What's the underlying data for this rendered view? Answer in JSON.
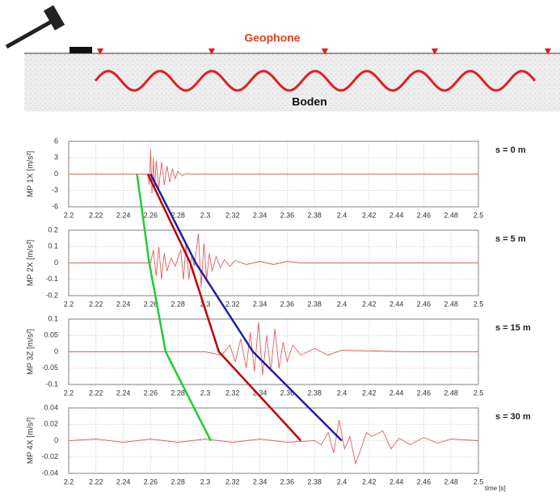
{
  "diagram": {
    "geophone_label": "Geophone",
    "ground_label": "Boden"
  },
  "chart_data": [
    {
      "type": "line",
      "title": "s = 0 m",
      "y_label": "MP 1X [m/s²]",
      "color": "#e06060",
      "xlim": [
        2.2,
        2.5
      ],
      "xticks": [
        2.2,
        2.22,
        2.24,
        2.26,
        2.28,
        2.3,
        2.32,
        2.34,
        2.36,
        2.38,
        2.4,
        2.42,
        2.44,
        2.46,
        2.48,
        2.5
      ],
      "ylim": [
        -6,
        6
      ],
      "yticks": [
        -6,
        -3,
        0,
        3,
        6
      ],
      "grid": true,
      "x": [
        2.2,
        2.25,
        2.258,
        2.259,
        2.26,
        2.261,
        2.262,
        2.263,
        2.264,
        2.266,
        2.268,
        2.27,
        2.272,
        2.274,
        2.276,
        2.278,
        2.28,
        2.283,
        2.286,
        2.29,
        2.5
      ],
      "values": [
        0,
        0,
        0,
        -2,
        4.5,
        -3.5,
        3,
        -3,
        2.5,
        -2.5,
        2.2,
        -2,
        1.5,
        -1.5,
        1,
        -0.8,
        0.5,
        -0.3,
        0.1,
        0,
        0
      ]
    },
    {
      "type": "line",
      "title": "s = 5 m",
      "y_label": "MP 2X [m/s²]",
      "color": "#e06060",
      "xlim": [
        2.2,
        2.5
      ],
      "xticks": [
        2.2,
        2.22,
        2.24,
        2.26,
        2.28,
        2.3,
        2.32,
        2.34,
        2.36,
        2.38,
        2.4,
        2.42,
        2.44,
        2.46,
        2.48,
        2.5
      ],
      "ylim": [
        -0.2,
        0.2
      ],
      "yticks": [
        -0.2,
        -0.1,
        0,
        0.1,
        0.2
      ],
      "grid": true,
      "x": [
        2.2,
        2.26,
        2.262,
        2.264,
        2.266,
        2.268,
        2.27,
        2.272,
        2.275,
        2.278,
        2.282,
        2.284,
        2.286,
        2.288,
        2.29,
        2.292,
        2.295,
        2.297,
        2.299,
        2.301,
        2.303,
        2.305,
        2.308,
        2.311,
        2.314,
        2.318,
        2.322,
        2.33,
        2.34,
        2.35,
        2.36,
        2.37,
        2.5
      ],
      "values": [
        0,
        0,
        0.08,
        -0.08,
        0.1,
        -0.1,
        0.06,
        -0.05,
        0.03,
        -0.02,
        0.08,
        -0.1,
        0.12,
        -0.1,
        0.05,
        -0.02,
        0.18,
        -0.15,
        0.12,
        -0.1,
        0.06,
        -0.05,
        0.04,
        -0.03,
        0.02,
        -0.02,
        0.015,
        -0.01,
        0.01,
        -0.01,
        0.01,
        0,
        0
      ]
    },
    {
      "type": "line",
      "title": "s = 15 m",
      "y_label": "MP 3Z [m/s²]",
      "color": "#e06060",
      "xlim": [
        2.2,
        2.5
      ],
      "xticks": [
        2.2,
        2.22,
        2.24,
        2.26,
        2.28,
        2.3,
        2.32,
        2.34,
        2.36,
        2.38,
        2.4,
        2.42,
        2.44,
        2.46,
        2.48,
        2.5
      ],
      "ylim": [
        -0.1,
        0.1
      ],
      "yticks": [
        -0.1,
        -0.05,
        0,
        0.05,
        0.1
      ],
      "grid": true,
      "x": [
        2.2,
        2.3,
        2.312,
        2.318,
        2.322,
        2.326,
        2.33,
        2.333,
        2.336,
        2.339,
        2.342,
        2.345,
        2.348,
        2.351,
        2.354,
        2.357,
        2.36,
        2.364,
        2.37,
        2.38,
        2.39,
        2.4,
        2.45,
        2.5
      ],
      "values": [
        0,
        0,
        -0.01,
        0.02,
        -0.03,
        0.04,
        -0.05,
        0.06,
        -0.06,
        0.09,
        -0.07,
        0.05,
        -0.06,
        0.07,
        -0.05,
        0.03,
        -0.03,
        0.02,
        -0.01,
        0.01,
        -0.01,
        0.005,
        0,
        0
      ]
    },
    {
      "type": "line",
      "title": "s = 30 m",
      "y_label": "MP 4X [m/s²]",
      "x_label": "time [s]",
      "color": "#e06060",
      "xlim": [
        2.2,
        2.5
      ],
      "xticks": [
        2.2,
        2.22,
        2.24,
        2.26,
        2.28,
        2.3,
        2.32,
        2.34,
        2.36,
        2.38,
        2.4,
        2.42,
        2.44,
        2.46,
        2.48,
        2.5
      ],
      "ylim": [
        -0.04,
        0.04
      ],
      "yticks": [
        -0.04,
        -0.02,
        0,
        0.02,
        0.04
      ],
      "grid": true,
      "x": [
        2.2,
        2.22,
        2.24,
        2.26,
        2.28,
        2.3,
        2.32,
        2.34,
        2.36,
        2.38,
        2.385,
        2.39,
        2.394,
        2.398,
        2.402,
        2.406,
        2.41,
        2.414,
        2.418,
        2.422,
        2.43,
        2.436,
        2.442,
        2.45,
        2.46,
        2.47,
        2.48,
        2.5
      ],
      "values": [
        0,
        0.002,
        -0.002,
        0.002,
        -0.002,
        0.002,
        -0.002,
        0.002,
        -0.002,
        0,
        -0.005,
        0.01,
        -0.015,
        0.025,
        -0.01,
        0.005,
        -0.028,
        -0.01,
        0.01,
        0.005,
        0.012,
        -0.01,
        0.003,
        -0.005,
        0.004,
        -0.003,
        0.002,
        0
      ]
    }
  ],
  "picks": [
    {
      "color": "#22cc33",
      "x": [
        2.25,
        2.259,
        2.271,
        2.304
      ]
    },
    {
      "color": "#c00000",
      "x": [
        2.258,
        2.289,
        2.31,
        2.37
      ]
    },
    {
      "color": "#2020a0",
      "x": [
        2.26,
        2.293,
        2.335,
        2.4
      ]
    }
  ]
}
